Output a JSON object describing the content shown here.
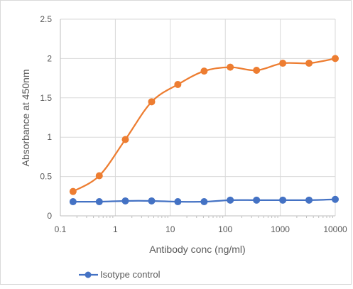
{
  "chart_data": {
    "type": "line",
    "title": "",
    "xlabel": "Antibody conc (ng/ml)",
    "ylabel": "Absorbance at 450nm",
    "xscale": "log",
    "xlim": [
      0.1,
      10000
    ],
    "ylim": [
      0,
      2.5
    ],
    "x_ticks": [
      "0.1",
      "1",
      "10",
      "100",
      "1000",
      "10000"
    ],
    "y_ticks": [
      "0",
      "0.5",
      "1",
      "1.5",
      "2",
      "2.5"
    ],
    "grid": true,
    "legend_position": "bottom-left",
    "x": [
      0.17,
      0.51,
      1.52,
      4.57,
      13.7,
      41.2,
      123,
      370,
      1111,
      3333,
      10000
    ],
    "series": [
      {
        "values": [
          0.31,
          0.51,
          0.97,
          1.45,
          1.67,
          1.84,
          1.89,
          1.85,
          1.94,
          1.94,
          2.0
        ],
        "color": "#ED7D31"
      },
      {
        "name": "Isotype control",
        "values": [
          0.18,
          0.18,
          0.19,
          0.19,
          0.18,
          0.18,
          0.2,
          0.2,
          0.2,
          0.2,
          0.21
        ],
        "color": "#4472C4"
      }
    ]
  }
}
